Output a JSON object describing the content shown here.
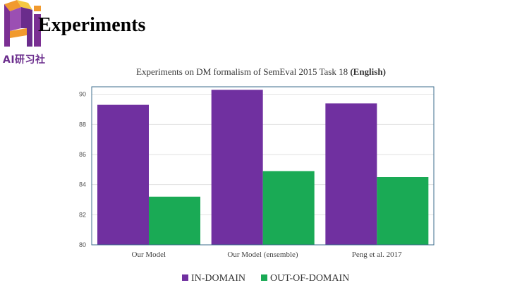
{
  "slide": {
    "title": "Experiments",
    "logo_caption": "AI研习社",
    "colors": {
      "logo_purple": "#7b2f93",
      "logo_orange": "#f19a2e",
      "logo_yellow": "#f5c842"
    }
  },
  "chart_data": {
    "type": "bar",
    "title": "Experiments on DM formalism of SemEval 2015 Task 18",
    "title_suffix": "(English)",
    "categories": [
      "Our Model",
      "Our Model (ensemble)",
      "Peng et al. 2017"
    ],
    "series": [
      {
        "name": "IN-DOMAIN",
        "color": "#7030a0",
        "values": [
          89.3,
          90.3,
          89.4
        ]
      },
      {
        "name": "OUT-OF-DOMAIN",
        "color": "#1aaa55",
        "values": [
          83.2,
          84.9,
          84.5
        ]
      }
    ],
    "ylim": [
      80,
      90.5
    ],
    "yticks": [
      80,
      82,
      84,
      86,
      88,
      90
    ],
    "grid": true,
    "legend_position": "bottom"
  }
}
